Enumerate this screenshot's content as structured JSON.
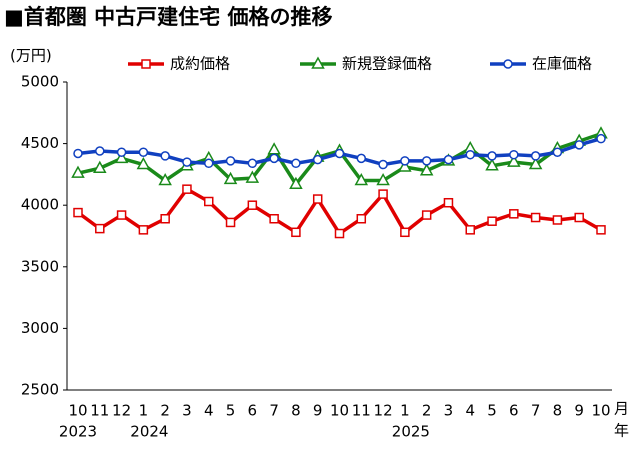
{
  "chart_data": {
    "type": "line",
    "title": "■首都圏 中古戸建住宅 価格の推移",
    "y_label": "(万円)",
    "categories": [
      "10",
      "11",
      "12",
      "1",
      "2",
      "3",
      "4",
      "5",
      "6",
      "7",
      "8",
      "9",
      "10",
      "11",
      "12",
      "1",
      "2",
      "3",
      "4",
      "5",
      "6",
      "7",
      "8",
      "9",
      "10"
    ],
    "years": [
      "2023",
      null,
      null,
      "2024",
      null,
      null,
      null,
      null,
      null,
      null,
      null,
      null,
      null,
      null,
      null,
      "2025",
      null,
      null,
      null,
      null,
      null,
      null,
      null,
      null,
      null
    ],
    "x_unit": "月",
    "year_unit": "年",
    "series": [
      {
        "name": "成約価格",
        "color": "#e00000",
        "marker": "square",
        "values": [
          3940,
          3810,
          3920,
          3800,
          3890,
          4130,
          4030,
          3860,
          4000,
          3890,
          3780,
          4050,
          3770,
          3890,
          4090,
          3780,
          3920,
          4020,
          3800,
          3870,
          3930,
          3900,
          3880,
          3900,
          3800
        ]
      },
      {
        "name": "新規登録価格",
        "color": "#1a8a1a",
        "marker": "triangle",
        "values": [
          4260,
          4300,
          4380,
          4330,
          4200,
          4320,
          4380,
          4210,
          4220,
          4450,
          4170,
          4390,
          4440,
          4200,
          4200,
          4310,
          4280,
          4360,
          4460,
          4320,
          4350,
          4330,
          4460,
          4520,
          4580
        ]
      },
      {
        "name": "在庫価格",
        "color": "#1040c0",
        "marker": "circle",
        "values": [
          4420,
          4440,
          4430,
          4430,
          4400,
          4350,
          4340,
          4360,
          4340,
          4380,
          4340,
          4370,
          4420,
          4380,
          4330,
          4360,
          4360,
          4370,
          4410,
          4400,
          4410,
          4400,
          4430,
          4490,
          4540
        ]
      }
    ],
    "ylim": [
      2500,
      5000
    ],
    "yticks": [
      2500,
      3000,
      3500,
      4000,
      4500,
      5000
    ],
    "grid": false
  }
}
